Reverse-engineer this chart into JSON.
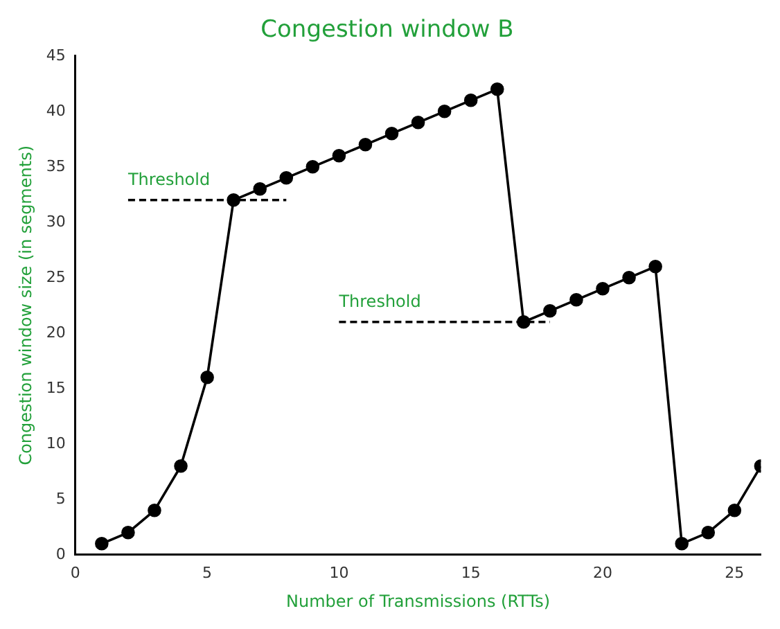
{
  "chart_data": {
    "type": "line",
    "title": "Congestion window B",
    "xlabel": "Number of Transmissions (RTTs)",
    "ylabel": "Congestion window size (in segments)",
    "x": [
      1,
      2,
      3,
      4,
      5,
      6,
      7,
      8,
      9,
      10,
      11,
      12,
      13,
      14,
      15,
      16,
      17,
      18,
      19,
      20,
      21,
      22,
      23,
      24,
      25,
      26
    ],
    "series": [
      {
        "color": "#000000",
        "marker": "circle",
        "line_style": "solid",
        "values": [
          1,
          2,
          4,
          8,
          16,
          32,
          33,
          34,
          35,
          36,
          37,
          38,
          39,
          40,
          41,
          42,
          21,
          22,
          23,
          24,
          25,
          26,
          1,
          2,
          4,
          8
        ]
      },
      {
        "color": "#000000",
        "marker": "none",
        "line_style": "dashed",
        "x": [
          2,
          8
        ],
        "values": [
          32,
          32
        ]
      },
      {
        "color": "#000000",
        "marker": "none",
        "line_style": "dashed",
        "x": [
          10,
          18
        ],
        "values": [
          21,
          21
        ]
      }
    ],
    "annotations": [
      {
        "text": "Threshold",
        "x": 2,
        "y": 32
      },
      {
        "text": "Threshold",
        "x": 10,
        "y": 21
      }
    ],
    "xlim": [
      0,
      26
    ],
    "xticks": [
      0,
      5,
      10,
      15,
      20,
      25
    ],
    "ylim": [
      0,
      45
    ],
    "yticks": [
      0,
      5,
      10,
      15,
      20,
      25,
      30,
      35,
      40,
      45
    ],
    "grid": false,
    "legend": false
  }
}
